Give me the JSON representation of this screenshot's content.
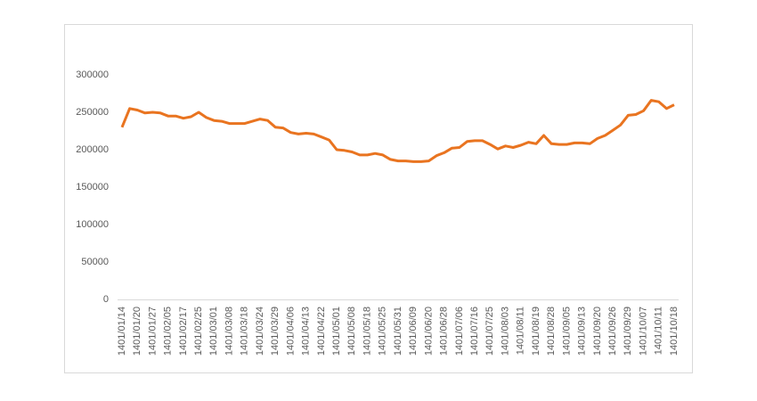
{
  "chart_data": {
    "type": "line",
    "categories": [
      "1401/01/14",
      null,
      "1401/01/20",
      null,
      "1401/01/27",
      null,
      "1401/02/05",
      null,
      "1401/02/17",
      null,
      "1401/02/25",
      null,
      "1401/03/01",
      null,
      "1401/03/08",
      null,
      "1401/03/18",
      null,
      "1401/03/24",
      null,
      "1401/03/29",
      null,
      "1401/04/06",
      null,
      "1401/04/13",
      null,
      "1401/04/22",
      null,
      "1401/05/01",
      null,
      "1401/05/08",
      null,
      "1401/05/18",
      null,
      "1401/05/25",
      null,
      "1401/05/31",
      null,
      "1401/06/09",
      null,
      "1401/06/20",
      null,
      "1401/06/28",
      null,
      "1401/07/06",
      null,
      "1401/07/16",
      null,
      "1401/07/25",
      null,
      "1401/08/03",
      null,
      "1401/08/11",
      null,
      "1401/08/19",
      null,
      "1401/08/28",
      null,
      "1401/09/05",
      null,
      "1401/09/13",
      null,
      "1401/09/20",
      null,
      "1401/09/26",
      null,
      "1401/09/29",
      null,
      "1401/10/07",
      null,
      "1401/10/11",
      null,
      "1401/10/18"
    ],
    "values": [
      230000,
      255000,
      253000,
      249000,
      250000,
      249000,
      245000,
      245000,
      242000,
      244000,
      250000,
      243000,
      239000,
      238000,
      235000,
      235000,
      235000,
      238000,
      241000,
      239000,
      230000,
      229000,
      223000,
      221000,
      222000,
      221000,
      217000,
      213000,
      200000,
      199000,
      197000,
      193000,
      193000,
      195000,
      193000,
      187000,
      185000,
      185000,
      184000,
      184000,
      185000,
      192000,
      196000,
      202000,
      203000,
      211000,
      212000,
      212000,
      207000,
      201000,
      205000,
      203000,
      206000,
      210000,
      208000,
      219000,
      208000,
      207000,
      207000,
      209000,
      209000,
      208000,
      215000,
      219000,
      226000,
      233000,
      246000,
      247000,
      252000,
      266000,
      264000,
      255000,
      260000
    ],
    "color": "#e97420",
    "ylim": [
      0,
      300000
    ],
    "yticks": [
      0,
      50000,
      100000,
      150000,
      200000,
      250000,
      300000
    ],
    "grid": false
  }
}
